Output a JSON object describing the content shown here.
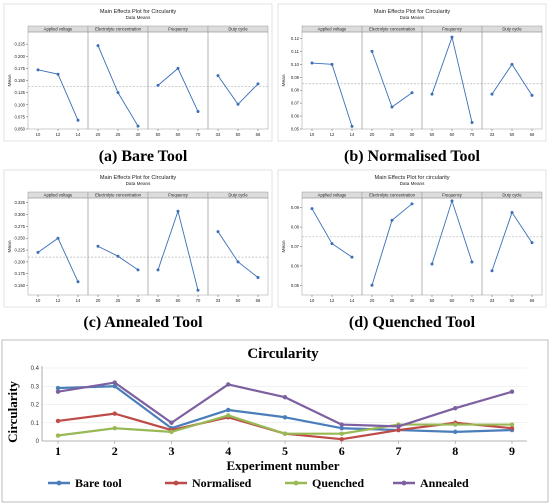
{
  "colors": {
    "me_line": "#3b6fb6",
    "me_ref": "#b5b5b5",
    "me_frame": "#9a9a9a",
    "me_header": "#dcdcdc",
    "bare": "#4a7ebb",
    "normalised": "#be4b48",
    "quenched": "#98b954",
    "annealed": "#7d60a0"
  },
  "chart_data": [
    {
      "type": "line",
      "panel": "(a) Bare Tool",
      "title": "Main Effects Plot for Circularity",
      "subtitle": "Data Means",
      "ylabel": "Mean",
      "ylim": [
        0.05,
        0.25
      ],
      "yticks": [
        "0.225",
        "0.200",
        "0.175",
        "0.150",
        "0.125",
        "0.100",
        "0.075",
        "0.050"
      ],
      "reference": 0.138,
      "factors": [
        {
          "name": "Applied voltage",
          "levels": [
            "10",
            "12",
            "14"
          ],
          "values": [
            0.172,
            0.163,
            0.068
          ]
        },
        {
          "name": "Electrolyte concentration",
          "levels": [
            "20",
            "25",
            "30"
          ],
          "values": [
            0.222,
            0.125,
            0.056
          ]
        },
        {
          "name": "Frequency",
          "levels": [
            "50",
            "60",
            "70"
          ],
          "values": [
            0.14,
            0.175,
            0.086
          ]
        },
        {
          "name": "Duty cycle",
          "levels": [
            "33",
            "50",
            "66"
          ],
          "values": [
            0.16,
            0.101,
            0.143
          ]
        }
      ]
    },
    {
      "type": "line",
      "panel": "(b) Normalised Tool",
      "title": "Main Effects Plot for Circularity",
      "subtitle": "Data Means",
      "ylabel": "Mean",
      "ylim": [
        0.05,
        0.125
      ],
      "yticks": [
        "0.12",
        "0.11",
        "0.10",
        "0.09",
        "0.08",
        "0.07",
        "0.06",
        "0.05"
      ],
      "reference": 0.085,
      "factors": [
        {
          "name": "Applied voltage",
          "levels": [
            "10",
            "12",
            "14"
          ],
          "values": [
            0.101,
            0.1,
            0.052
          ]
        },
        {
          "name": "Electrolyte concentration",
          "levels": [
            "20",
            "25",
            "30"
          ],
          "values": [
            0.11,
            0.067,
            0.078
          ]
        },
        {
          "name": "Frequency",
          "levels": [
            "50",
            "60",
            "70"
          ],
          "values": [
            0.077,
            0.121,
            0.055
          ]
        },
        {
          "name": "Duty cycle",
          "levels": [
            "33",
            "50",
            "66"
          ],
          "values": [
            0.077,
            0.1,
            0.076
          ]
        }
      ]
    },
    {
      "type": "line",
      "panel": "(c) Annealed Tool",
      "title": "Main Effects Plot for Circularity",
      "subtitle": "Data Means",
      "ylabel": "Mean",
      "ylim": [
        0.13,
        0.335
      ],
      "yticks": [
        "0.325",
        "0.300",
        "0.275",
        "0.250",
        "0.225",
        "0.200",
        "0.175",
        "0.150"
      ],
      "reference": 0.21,
      "factors": [
        {
          "name": "Applied voltage",
          "levels": [
            "10",
            "12",
            "14"
          ],
          "values": [
            0.22,
            0.25,
            0.158
          ]
        },
        {
          "name": "Electrolyte concentration",
          "levels": [
            "20",
            "25",
            "30"
          ],
          "values": [
            0.233,
            0.212,
            0.183
          ]
        },
        {
          "name": "Frequency",
          "levels": [
            "50",
            "60",
            "70"
          ],
          "values": [
            0.183,
            0.307,
            0.14
          ]
        },
        {
          "name": "Duty cycle",
          "levels": [
            "33",
            "50",
            "66"
          ],
          "values": [
            0.264,
            0.2,
            0.167
          ]
        }
      ]
    },
    {
      "type": "line",
      "panel": "(d) Quenched Tool",
      "title": "Main Effects Plot for circularity",
      "subtitle": "Data Means",
      "ylabel": "Mean",
      "ylim": [
        0.045,
        0.095
      ],
      "yticks": [
        "0.09",
        "0.08",
        "0.07",
        "0.06",
        "0.05"
      ],
      "reference": 0.075,
      "factors": [
        {
          "name": "Applied voltage",
          "levels": [
            "10",
            "12",
            "14"
          ],
          "values": [
            0.0895,
            0.0715,
            0.0645
          ]
        },
        {
          "name": "Electrolyte concentration",
          "levels": [
            "20",
            "25",
            "30"
          ],
          "values": [
            0.05,
            0.0835,
            0.092
          ]
        },
        {
          "name": "Frequency",
          "levels": [
            "50",
            "60",
            "70"
          ],
          "values": [
            0.061,
            0.0935,
            0.062
          ]
        },
        {
          "name": "Duty cycle",
          "levels": [
            "33",
            "50",
            "66"
          ],
          "values": [
            0.0575,
            0.0875,
            0.072
          ]
        }
      ]
    },
    {
      "type": "line",
      "title": "Circularity",
      "xlabel": "Experiment number",
      "ylabel": "Circularity",
      "ylim": [
        0,
        0.4
      ],
      "yticks": [
        "0",
        "0.1",
        "0.2",
        "0.3",
        "0.4"
      ],
      "categories": [
        "1",
        "2",
        "3",
        "4",
        "5",
        "6",
        "7",
        "8",
        "9"
      ],
      "legend_position": "bottom",
      "series": [
        {
          "name": "Bare tool",
          "color": "#4a7ebb",
          "values": [
            0.29,
            0.3,
            0.07,
            0.17,
            0.13,
            0.07,
            0.06,
            0.05,
            0.06
          ]
        },
        {
          "name": "Normalised",
          "color": "#be4b48",
          "values": [
            0.11,
            0.15,
            0.06,
            0.13,
            0.04,
            0.01,
            0.06,
            0.1,
            0.07
          ]
        },
        {
          "name": "Quenched",
          "color": "#98b954",
          "values": [
            0.03,
            0.07,
            0.05,
            0.14,
            0.04,
            0.04,
            0.09,
            0.09,
            0.09
          ]
        },
        {
          "name": "Annealed",
          "color": "#7d60a0",
          "values": [
            0.27,
            0.32,
            0.1,
            0.31,
            0.24,
            0.09,
            0.08,
            0.18,
            0.27
          ]
        }
      ]
    }
  ]
}
